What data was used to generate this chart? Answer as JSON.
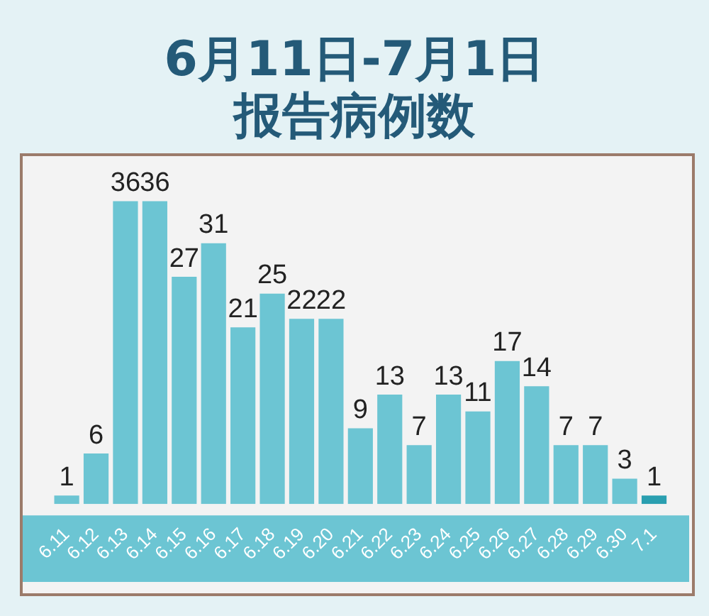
{
  "chart_data": {
    "type": "bar",
    "title": "6月11日-7月1日",
    "subtitle": "报告病例数",
    "categories": [
      "6.11",
      "6.12",
      "6.13",
      "6.14",
      "6.15",
      "6.16",
      "6.17",
      "6.18",
      "6.19",
      "6.20",
      "6.21",
      "6.22",
      "6.23",
      "6.24",
      "6.25",
      "6.26",
      "6.27",
      "6.28",
      "6.29",
      "6.30",
      "7.1"
    ],
    "values": [
      1,
      6,
      36,
      36,
      27,
      31,
      21,
      25,
      22,
      22,
      9,
      13,
      7,
      13,
      11,
      17,
      14,
      7,
      7,
      3,
      1
    ],
    "colors": [
      "#6cc5d3",
      "#6cc5d3",
      "#6cc5d3",
      "#6cc5d3",
      "#6cc5d3",
      "#6cc5d3",
      "#6cc5d3",
      "#6cc5d3",
      "#6cc5d3",
      "#6cc5d3",
      "#6cc5d3",
      "#6cc5d3",
      "#6cc5d3",
      "#6cc5d3",
      "#6cc5d3",
      "#6cc5d3",
      "#6cc5d3",
      "#6cc5d3",
      "#6cc5d3",
      "#6cc5d3",
      "#2a9fb0"
    ],
    "data_labels": true,
    "grid": false,
    "legend": false
  }
}
